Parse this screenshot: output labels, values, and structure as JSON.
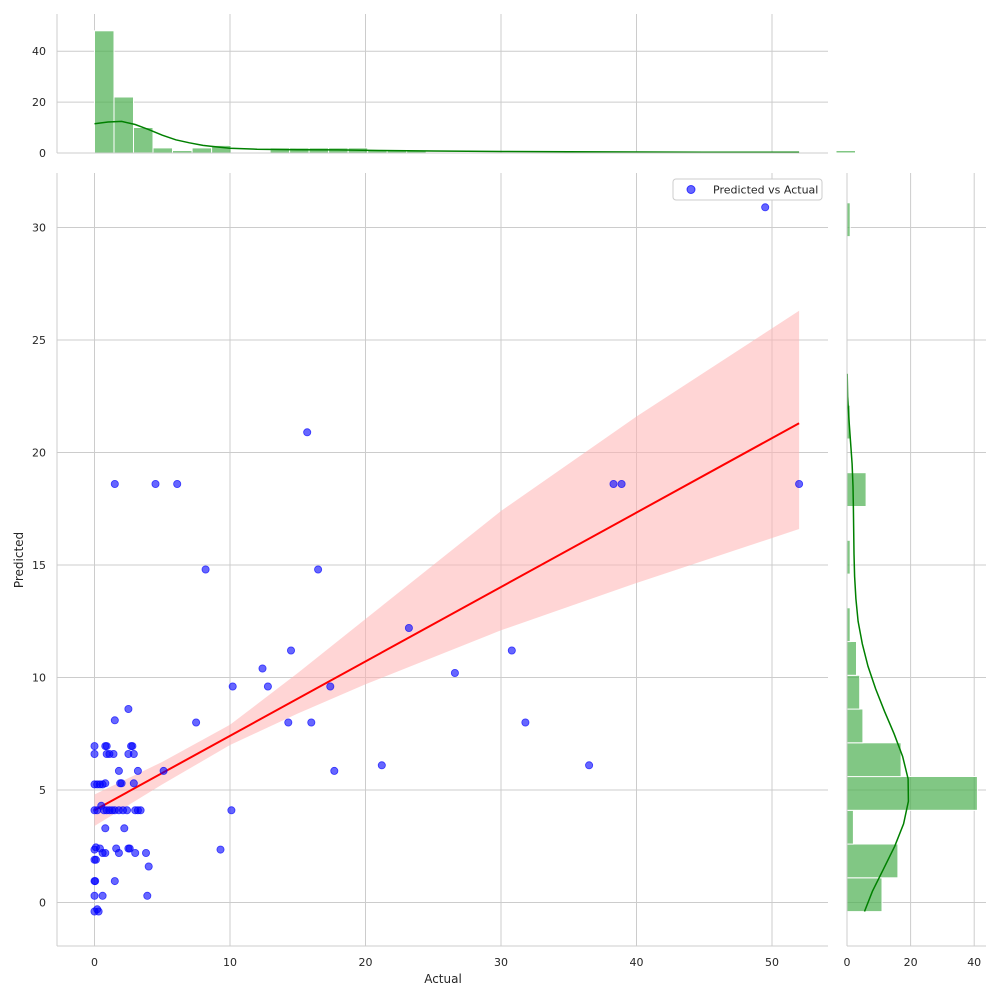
{
  "chart_data": {
    "type": "scatter",
    "xlabel": "Actual",
    "ylabel": "Predicted",
    "xlim": [
      -2.7,
      54.5
    ],
    "ylim": [
      -2,
      32.5
    ],
    "x_ticks": [
      0,
      10,
      20,
      30,
      40,
      50
    ],
    "y_ticks": [
      0,
      5,
      10,
      15,
      20,
      25,
      30
    ],
    "grid": true,
    "legend_position": "top-right",
    "colors": {
      "points": "#0000ff",
      "regression": "#ff0000",
      "confidence_band": "#ffb3b3",
      "histogram": "#4caf50",
      "kde": "#008000"
    },
    "series": [
      {
        "name": "Predicted vs Actual",
        "points": [
          [
            0.0,
            -0.4
          ],
          [
            0.2,
            -0.3
          ],
          [
            0.3,
            -0.4
          ],
          [
            0.0,
            0.3
          ],
          [
            0.6,
            0.3
          ],
          [
            0.0,
            0.95
          ],
          [
            0.05,
            0.95
          ],
          [
            0.0,
            1.9
          ],
          [
            0.1,
            1.9
          ],
          [
            0.0,
            2.35
          ],
          [
            0.1,
            2.45
          ],
          [
            0.4,
            2.4
          ],
          [
            0.6,
            2.2
          ],
          [
            0.8,
            2.2
          ],
          [
            0.0,
            4.1
          ],
          [
            0.2,
            4.1
          ],
          [
            0.5,
            4.3
          ],
          [
            0.7,
            4.1
          ],
          [
            0.9,
            4.1
          ],
          [
            1.1,
            4.1
          ],
          [
            1.3,
            4.1
          ],
          [
            1.5,
            4.1
          ],
          [
            1.8,
            4.1
          ],
          [
            2.1,
            4.1
          ],
          [
            2.4,
            4.1
          ],
          [
            3.0,
            4.1
          ],
          [
            3.2,
            4.1
          ],
          [
            3.4,
            4.1
          ],
          [
            0.0,
            5.25
          ],
          [
            0.2,
            5.25
          ],
          [
            0.4,
            5.25
          ],
          [
            0.6,
            5.25
          ],
          [
            0.8,
            5.3
          ],
          [
            0.0,
            6.6
          ],
          [
            0.0,
            6.95
          ],
          [
            0.8,
            6.95
          ],
          [
            0.9,
            6.95
          ],
          [
            0.9,
            6.6
          ],
          [
            1.1,
            6.6
          ],
          [
            1.4,
            6.6
          ],
          [
            0.8,
            3.3
          ],
          [
            1.6,
            2.4
          ],
          [
            1.8,
            2.2
          ],
          [
            2.2,
            3.3
          ],
          [
            2.5,
            2.4
          ],
          [
            2.6,
            2.4
          ],
          [
            3.0,
            2.2
          ],
          [
            1.8,
            5.85
          ],
          [
            1.9,
            5.3
          ],
          [
            2.0,
            5.3
          ],
          [
            2.5,
            6.6
          ],
          [
            2.7,
            6.95
          ],
          [
            2.8,
            6.95
          ],
          [
            2.9,
            6.6
          ],
          [
            2.9,
            5.3
          ],
          [
            3.2,
            5.85
          ],
          [
            1.5,
            8.1
          ],
          [
            2.5,
            8.6
          ],
          [
            1.5,
            0.95
          ],
          [
            3.8,
            2.2
          ],
          [
            4.0,
            1.6
          ],
          [
            3.9,
            0.3
          ],
          [
            5.1,
            5.85
          ],
          [
            1.5,
            18.6
          ],
          [
            4.5,
            18.6
          ],
          [
            6.1,
            18.6
          ],
          [
            8.2,
            14.8
          ],
          [
            7.5,
            8.0
          ],
          [
            9.3,
            2.35
          ],
          [
            10.1,
            4.1
          ],
          [
            10.2,
            9.6
          ],
          [
            12.4,
            10.4
          ],
          [
            12.8,
            9.6
          ],
          [
            14.3,
            8.0
          ],
          [
            14.5,
            11.2
          ],
          [
            15.7,
            20.9
          ],
          [
            16.0,
            8.0
          ],
          [
            16.5,
            14.8
          ],
          [
            17.4,
            9.6
          ],
          [
            17.7,
            5.85
          ],
          [
            21.2,
            6.1
          ],
          [
            23.2,
            12.2
          ],
          [
            26.6,
            10.2
          ],
          [
            30.8,
            11.2
          ],
          [
            31.8,
            8.0
          ],
          [
            36.5,
            6.1
          ],
          [
            38.3,
            18.6
          ],
          [
            38.9,
            18.6
          ],
          [
            49.5,
            30.9
          ],
          [
            52.0,
            18.6
          ]
        ]
      }
    ],
    "regression": {
      "x_start": 0,
      "y_start": 4.1,
      "x_end": 52,
      "y_end": 21.3,
      "band": [
        [
          0,
          3.4,
          4.8
        ],
        [
          5,
          5.25,
          6.25
        ],
        [
          10,
          7.0,
          7.9
        ],
        [
          15,
          8.4,
          10.2
        ],
        [
          20,
          9.7,
          12.6
        ],
        [
          30,
          12.1,
          17.4
        ],
        [
          40,
          14.2,
          21.6
        ],
        [
          52,
          16.6,
          26.3
        ]
      ]
    },
    "marginal_x": {
      "yticks": [
        0,
        20,
        40
      ],
      "ylim": [
        0,
        52
      ],
      "bin_edges_start": 0,
      "bin_width": 1.44,
      "counts": [
        48,
        22,
        10,
        2,
        1,
        2,
        3,
        0,
        0,
        2,
        2,
        2,
        2,
        2,
        1,
        1,
        1,
        0,
        0,
        0,
        0,
        0,
        0,
        0,
        0,
        0,
        0,
        0,
        0,
        0,
        0,
        0,
        0,
        0,
        0,
        0,
        0,
        0,
        1
      ],
      "kde": [
        [
          0,
          11.5
        ],
        [
          1,
          12.2
        ],
        [
          2,
          12.4
        ],
        [
          3,
          11.2
        ],
        [
          4,
          9.2
        ],
        [
          5,
          7.0
        ],
        [
          6,
          5.2
        ],
        [
          7,
          4.0
        ],
        [
          8,
          3.0
        ],
        [
          9,
          2.4
        ],
        [
          10,
          1.9
        ],
        [
          12,
          1.5
        ],
        [
          15,
          1.3
        ],
        [
          18,
          1.2
        ],
        [
          21,
          1.0
        ],
        [
          25,
          0.8
        ],
        [
          30,
          0.6
        ],
        [
          35,
          0.5
        ],
        [
          40,
          0.4
        ],
        [
          45,
          0.3
        ],
        [
          52,
          0.3
        ]
      ]
    },
    "marginal_y": {
      "xticks": [
        0,
        20,
        40
      ],
      "xlim": [
        0,
        43
      ],
      "bins": [
        [
          -0.4,
          1.1,
          11
        ],
        [
          1.1,
          2.6,
          16
        ],
        [
          2.6,
          4.1,
          2
        ],
        [
          4.1,
          5.6,
          41
        ],
        [
          5.6,
          7.1,
          17
        ],
        [
          7.1,
          8.6,
          5
        ],
        [
          8.6,
          10.1,
          4
        ],
        [
          10.1,
          11.6,
          3
        ],
        [
          11.6,
          13.1,
          1
        ],
        [
          14.6,
          16.1,
          1
        ],
        [
          17.6,
          19.1,
          6
        ],
        [
          20.6,
          22.1,
          1
        ],
        [
          29.6,
          31.1,
          1
        ]
      ],
      "kde": [
        [
          -0.4,
          5.5
        ],
        [
          0.5,
          8.0
        ],
        [
          1.5,
          11.5
        ],
        [
          2.5,
          15.0
        ],
        [
          3.5,
          17.8
        ],
        [
          4.5,
          19.3
        ],
        [
          5.5,
          19.2
        ],
        [
          6.5,
          17.5
        ],
        [
          7.5,
          14.8
        ],
        [
          8.5,
          11.8
        ],
        [
          9.5,
          9.0
        ],
        [
          10.5,
          6.6
        ],
        [
          11.5,
          4.8
        ],
        [
          12.5,
          3.5
        ],
        [
          13.5,
          2.8
        ],
        [
          14.5,
          2.4
        ],
        [
          15.5,
          2.2
        ],
        [
          16.5,
          2.1
        ],
        [
          17.5,
          2.0
        ],
        [
          18.5,
          1.9
        ],
        [
          19.5,
          1.6
        ],
        [
          20.5,
          1.1
        ],
        [
          21.5,
          0.6
        ],
        [
          22.5,
          0.2
        ],
        [
          23.5,
          0.05
        ]
      ]
    }
  }
}
